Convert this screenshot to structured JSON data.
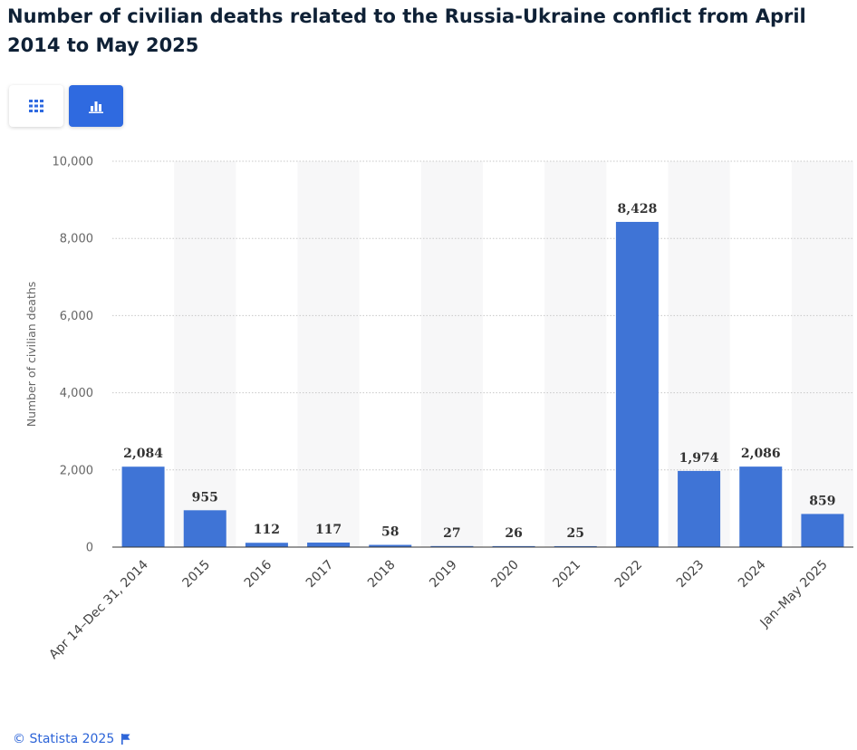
{
  "title": "Number of civilian deaths related to the Russia-Ukraine conflict from April 2014 to May 2025",
  "view_toggle": {
    "table_icon": "grid-icon",
    "chart_icon": "bar-chart-icon",
    "active": "chart"
  },
  "chart_data": {
    "type": "bar",
    "categories": [
      "Apr 14–Dec 31, 2014",
      "2015",
      "2016",
      "2017",
      "2018",
      "2019",
      "2020",
      "2021",
      "2022",
      "2023",
      "2024",
      "Jan–May 2025"
    ],
    "values": [
      2084,
      955,
      112,
      117,
      58,
      27,
      26,
      25,
      8428,
      1974,
      2086,
      859
    ],
    "value_labels": [
      "2,084",
      "955",
      "112",
      "117",
      "58",
      "27",
      "26",
      "25",
      "8,428",
      "1,974",
      "2,086",
      "859"
    ],
    "ylabel": "Number of civilian deaths",
    "xlabel": "",
    "ylim": [
      0,
      10000
    ],
    "yticks": [
      0,
      2000,
      4000,
      6000,
      8000,
      10000
    ],
    "ytick_labels": [
      "0",
      "2,000",
      "4,000",
      "6,000",
      "8,000",
      "10,000"
    ],
    "grid": true,
    "bar_color": "#3f74d6"
  },
  "footer": {
    "copyright": "© Statista 2025",
    "flag_icon": "flag-icon"
  }
}
